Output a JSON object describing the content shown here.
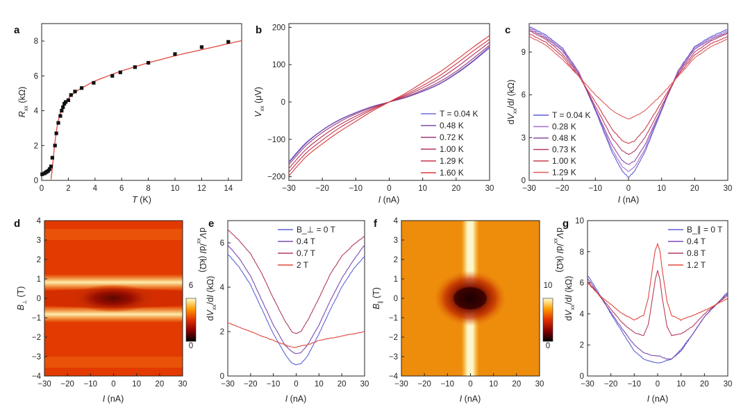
{
  "figure": {
    "panel_labels": [
      "a",
      "b",
      "c",
      "d",
      "e",
      "f",
      "g"
    ],
    "colors": {
      "fit_red": "#e0463c",
      "blue": "#5a62d6",
      "series_b": [
        "#6a6ae0",
        "#7c4aa8",
        "#9a3a78",
        "#b23458",
        "#c8304a",
        "#d83a3a"
      ],
      "series_c": [
        "#5a5ad8",
        "#a070c8",
        "#8c4aa8",
        "#b43a6c",
        "#c83a4a",
        "#e0585a"
      ],
      "series_e": [
        "#5a62d6",
        "#7a4ab0",
        "#b23a5a",
        "#e0463c"
      ],
      "series_g": [
        "#5a62d6",
        "#7a4ab0",
        "#b23a5a",
        "#e0463c"
      ]
    }
  },
  "chart_data": [
    {
      "panel": "a",
      "type": "scatter",
      "xlabel": "T (K)",
      "ylabel": "R_xx (kΩ)",
      "xlim": [
        0,
        15
      ],
      "ylim": [
        0,
        9
      ],
      "xticks": [
        "0",
        "2",
        "4",
        "6",
        "8",
        "10",
        "12",
        "14"
      ],
      "yticks": [
        "0",
        "2",
        "4",
        "6",
        "8"
      ],
      "x": [
        0.04,
        0.2,
        0.3,
        0.4,
        0.5,
        0.6,
        0.7,
        0.8,
        1.0,
        1.1,
        1.25,
        1.4,
        1.5,
        1.6,
        1.7,
        1.8,
        2.0,
        2.2,
        2.5,
        3.0,
        3.9,
        5.3,
        5.9,
        7.0,
        8.0,
        10.0,
        12.0,
        14.0
      ],
      "y": [
        0.35,
        0.4,
        0.45,
        0.5,
        0.55,
        0.65,
        0.8,
        1.3,
        2.0,
        2.7,
        3.3,
        3.7,
        4.0,
        4.2,
        4.4,
        4.5,
        4.6,
        4.9,
        5.1,
        5.3,
        5.6,
        6.0,
        6.2,
        6.5,
        6.75,
        7.25,
        7.65,
        7.95
      ],
      "fit": {
        "x": [
          0.7,
          0.8,
          0.9,
          1.0,
          1.1,
          1.2,
          1.4,
          1.6,
          1.8,
          2.0,
          2.5,
          3.0,
          4.0,
          5.0,
          6.0,
          7.0,
          8.0,
          9.0,
          10.0,
          11.0,
          12.0,
          13.0,
          14.0,
          15.0
        ],
        "y": [
          0.05,
          0.7,
          1.5,
          2.2,
          2.8,
          3.25,
          3.85,
          4.25,
          4.5,
          4.7,
          5.05,
          5.3,
          5.7,
          6.0,
          6.28,
          6.52,
          6.75,
          6.95,
          7.15,
          7.33,
          7.5,
          7.67,
          7.85,
          8.02
        ]
      }
    },
    {
      "panel": "b",
      "type": "line",
      "xlabel": "I (nA)",
      "ylabel": "V_xx (μV)",
      "xlim": [
        -30,
        30
      ],
      "ylim": [
        -210,
        210
      ],
      "xticks": [
        "−30",
        "−20",
        "−10",
        "0",
        "10",
        "20",
        "30"
      ],
      "yticks": [
        "−200",
        "−100",
        "0",
        "100",
        "200"
      ],
      "legend": [
        "T = 0.04 K",
        "0.48 K",
        "0.72 K",
        "1.00 K",
        "1.29 K",
        "1.60 K"
      ],
      "x": [
        -30,
        -25,
        -20,
        -15,
        -10,
        -5,
        0,
        5,
        10,
        15,
        20,
        25,
        30
      ],
      "series": [
        {
          "name": "T = 0.04 K",
          "values": [
            -160,
            -110,
            -75,
            -48,
            -28,
            -12,
            0,
            12,
            28,
            48,
            75,
            108,
            145
          ]
        },
        {
          "name": "0.48 K",
          "values": [
            -163,
            -112,
            -76,
            -49,
            -29,
            -12,
            0,
            12,
            29,
            49,
            77,
            110,
            148
          ]
        },
        {
          "name": "0.72 K",
          "values": [
            -168,
            -118,
            -82,
            -54,
            -32,
            -14,
            0,
            14,
            32,
            54,
            82,
            116,
            152
          ]
        },
        {
          "name": "1.00 K",
          "values": [
            -178,
            -128,
            -92,
            -62,
            -38,
            -17,
            0,
            17,
            38,
            62,
            92,
            126,
            160
          ]
        },
        {
          "name": "1.29 K",
          "values": [
            -188,
            -138,
            -102,
            -70,
            -44,
            -20,
            0,
            20,
            44,
            70,
            102,
            136,
            168
          ]
        },
        {
          "name": "1.60 K",
          "values": [
            -198,
            -148,
            -112,
            -80,
            -52,
            -24,
            0,
            24,
            52,
            80,
            112,
            146,
            178
          ]
        }
      ]
    },
    {
      "panel": "c",
      "type": "line",
      "xlabel": "I (nA)",
      "ylabel": "dV_xx/dI (kΩ)",
      "xlim": [
        -30,
        30
      ],
      "ylim": [
        0,
        11
      ],
      "xticks": [
        "−30",
        "−20",
        "−10",
        "0",
        "10",
        "20",
        "30"
      ],
      "yticks": [
        "0",
        "3",
        "6",
        "9"
      ],
      "legend": [
        "T = 0.04 K",
        "0.28 K",
        "0.48 K",
        "0.73 K",
        "1.00 K",
        "1.29 K"
      ],
      "x": [
        -30,
        -25,
        -20,
        -15,
        -10,
        -5,
        -2,
        0,
        2,
        5,
        10,
        15,
        20,
        25,
        30
      ],
      "series": [
        {
          "name": "T = 0.04 K",
          "values": [
            10.8,
            10.2,
            9.3,
            7.6,
            4.9,
            2.0,
            0.7,
            0.2,
            0.7,
            2.0,
            4.9,
            7.7,
            9.4,
            10.1,
            10.6
          ]
        },
        {
          "name": "0.28 K",
          "values": [
            10.7,
            10.1,
            9.2,
            7.6,
            5.0,
            2.2,
            1.0,
            0.6,
            1.0,
            2.2,
            5.0,
            7.7,
            9.3,
            10.0,
            10.5
          ]
        },
        {
          "name": "0.48 K",
          "values": [
            10.6,
            10.0,
            9.1,
            7.5,
            5.0,
            2.5,
            1.4,
            1.1,
            1.4,
            2.5,
            5.0,
            7.6,
            9.2,
            9.9,
            10.4
          ]
        },
        {
          "name": "0.73 K",
          "values": [
            10.5,
            9.9,
            8.9,
            7.4,
            5.2,
            3.0,
            2.1,
            1.8,
            2.1,
            3.0,
            5.2,
            7.5,
            9.0,
            9.8,
            10.3
          ]
        },
        {
          "name": "1.00 K",
          "values": [
            10.3,
            9.7,
            8.7,
            7.3,
            5.5,
            3.6,
            2.8,
            2.6,
            2.8,
            3.6,
            5.5,
            7.4,
            8.8,
            9.6,
            10.1
          ]
        },
        {
          "name": "1.29 K",
          "values": [
            10.1,
            9.5,
            8.5,
            7.3,
            6.0,
            4.9,
            4.5,
            4.3,
            4.5,
            4.9,
            6.0,
            7.3,
            8.6,
            9.4,
            9.9
          ]
        }
      ]
    },
    {
      "panel": "d",
      "type": "heatmap",
      "xlabel": "I (nA)",
      "ylabel": "B_⊥ (T)",
      "xlim": [
        -30,
        30
      ],
      "ylim": [
        -4,
        4
      ],
      "xticks": [
        "−30",
        "−20",
        "−10",
        "0",
        "10",
        "20",
        "30"
      ],
      "yticks": [
        "−4",
        "−3",
        "−2",
        "−1",
        "0",
        "1",
        "2",
        "3",
        "4"
      ],
      "colorbar": {
        "label": "dV_xx/dI (kΩ)",
        "ticks": [
          "0",
          "6"
        ],
        "range": [
          0,
          6.5
        ]
      }
    },
    {
      "panel": "e",
      "type": "line",
      "xlabel": "I (nA)",
      "ylabel": "dV_xx/dI (kΩ)",
      "xlim": [
        -30,
        30
      ],
      "ylim": [
        0,
        7
      ],
      "xticks": [
        "−30",
        "−20",
        "−10",
        "0",
        "10",
        "20",
        "30"
      ],
      "yticks": [
        "0",
        "2",
        "4",
        "6"
      ],
      "legend": [
        "B_⊥ = 0 T",
        "0.4 T",
        "0.7 T",
        "2 T"
      ],
      "x": [
        -30,
        -25,
        -20,
        -15,
        -10,
        -5,
        -2,
        0,
        2,
        5,
        10,
        15,
        20,
        25,
        30
      ],
      "series": [
        {
          "name": "B_⊥ = 0 T",
          "values": [
            5.5,
            4.9,
            4.1,
            3.0,
            1.9,
            1.0,
            0.6,
            0.5,
            0.55,
            0.9,
            1.9,
            3.0,
            4.0,
            4.8,
            5.4
          ]
        },
        {
          "name": "0.4 T",
          "values": [
            5.9,
            5.3,
            4.5,
            3.4,
            2.3,
            1.4,
            1.1,
            1.0,
            1.05,
            1.4,
            2.3,
            3.4,
            4.4,
            5.2,
            5.9
          ]
        },
        {
          "name": "0.7 T",
          "values": [
            6.6,
            6.1,
            5.5,
            4.6,
            3.5,
            2.5,
            2.0,
            1.9,
            2.0,
            2.5,
            3.5,
            4.6,
            5.4,
            5.9,
            6.3
          ]
        },
        {
          "name": "2 T",
          "values": [
            2.4,
            2.2,
            2.0,
            1.8,
            1.6,
            1.4,
            1.3,
            1.3,
            1.35,
            1.4,
            1.6,
            1.7,
            1.8,
            1.9,
            2.0
          ]
        }
      ]
    },
    {
      "panel": "f",
      "type": "heatmap",
      "xlabel": "I (nA)",
      "ylabel": "B_∥ (T)",
      "xlim": [
        -30,
        30
      ],
      "ylim": [
        -4,
        4
      ],
      "xticks": [
        "−30",
        "−20",
        "−10",
        "0",
        "10",
        "20",
        "30"
      ],
      "yticks": [
        "−4",
        "−3",
        "−2",
        "−1",
        "0",
        "1",
        "2",
        "3",
        "4"
      ],
      "colorbar": {
        "label": "dV_xx/dI (kΩ)",
        "ticks": [
          "0",
          "10"
        ],
        "range": [
          0,
          11
        ]
      }
    },
    {
      "panel": "g",
      "type": "line",
      "xlabel": "I (nA)",
      "ylabel": "dV_xx/dI (kΩ)",
      "xlim": [
        -30,
        30
      ],
      "ylim": [
        0,
        10
      ],
      "xticks": [
        "−30",
        "−20",
        "−10",
        "0",
        "10",
        "20",
        "30"
      ],
      "yticks": [
        "0",
        "2",
        "4",
        "6",
        "8",
        "10"
      ],
      "legend": [
        "B_∥ = 0 T",
        "0.4 T",
        "0.8 T",
        "1.2 T"
      ],
      "x": [
        -30,
        -25,
        -20,
        -15,
        -10,
        -6,
        -4,
        -2,
        -1,
        0,
        1,
        2,
        4,
        6,
        10,
        15,
        20,
        25,
        30
      ],
      "series": [
        {
          "name": "B_∥ = 0 T",
          "values": [
            6.5,
            5.3,
            4.0,
            2.8,
            1.6,
            1.1,
            1.0,
            0.9,
            0.85,
            0.85,
            0.85,
            0.9,
            1.0,
            1.1,
            1.6,
            2.7,
            3.8,
            4.6,
            5.4
          ]
        },
        {
          "name": "0.4 T",
          "values": [
            6.3,
            5.2,
            4.1,
            3.0,
            2.0,
            1.5,
            1.4,
            1.3,
            1.3,
            1.3,
            1.3,
            1.2,
            1.1,
            1.1,
            1.7,
            2.7,
            3.8,
            4.6,
            5.3
          ]
        },
        {
          "name": "0.8 T",
          "values": [
            6.1,
            5.2,
            4.3,
            3.4,
            2.8,
            2.6,
            3.3,
            5.2,
            6.2,
            6.8,
            6.2,
            5.0,
            3.2,
            2.6,
            2.7,
            3.2,
            4.0,
            4.6,
            5.2
          ]
        },
        {
          "name": "1.2 T",
          "values": [
            6.0,
            5.2,
            4.6,
            4.0,
            3.6,
            3.9,
            5.0,
            7.2,
            8.1,
            8.5,
            8.0,
            6.8,
            4.8,
            3.9,
            3.6,
            3.9,
            4.2,
            4.6,
            5.0
          ]
        }
      ]
    }
  ]
}
